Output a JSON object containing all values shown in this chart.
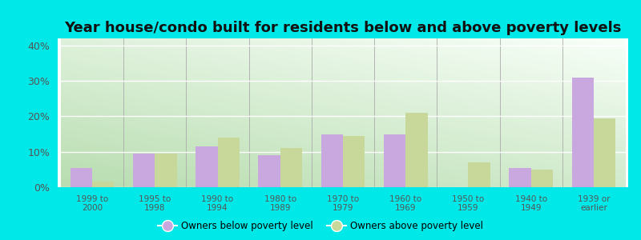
{
  "title": "Year house/condo built for residents below and above poverty levels",
  "categories": [
    "1999 to\n2000",
    "1995 to\n1998",
    "1990 to\n1994",
    "1980 to\n1989",
    "1970 to\n1979",
    "1960 to\n1969",
    "1950 to\n1959",
    "1940 to\n1949",
    "1939 or\nearlier"
  ],
  "below_poverty": [
    5.5,
    9.5,
    11.5,
    9.0,
    15.0,
    15.0,
    0.0,
    5.5,
    31.0
  ],
  "above_poverty": [
    1.5,
    9.5,
    14.0,
    11.0,
    14.5,
    21.0,
    7.0,
    5.0,
    19.5
  ],
  "below_color": "#c9a8e0",
  "above_color": "#c8d89a",
  "outer_bg": "#00e8e8",
  "ylim": [
    0,
    42
  ],
  "yticks": [
    0,
    10,
    20,
    30,
    40
  ],
  "ytick_labels": [
    "0%",
    "10%",
    "20%",
    "30%",
    "40%"
  ],
  "legend_below": "Owners below poverty level",
  "legend_above": "Owners above poverty level",
  "title_fontsize": 13,
  "bar_width": 0.35,
  "grad_color_topleft": "#b8ddb0",
  "grad_color_bottomright": "#f8fff8",
  "tick_color": "#555555"
}
